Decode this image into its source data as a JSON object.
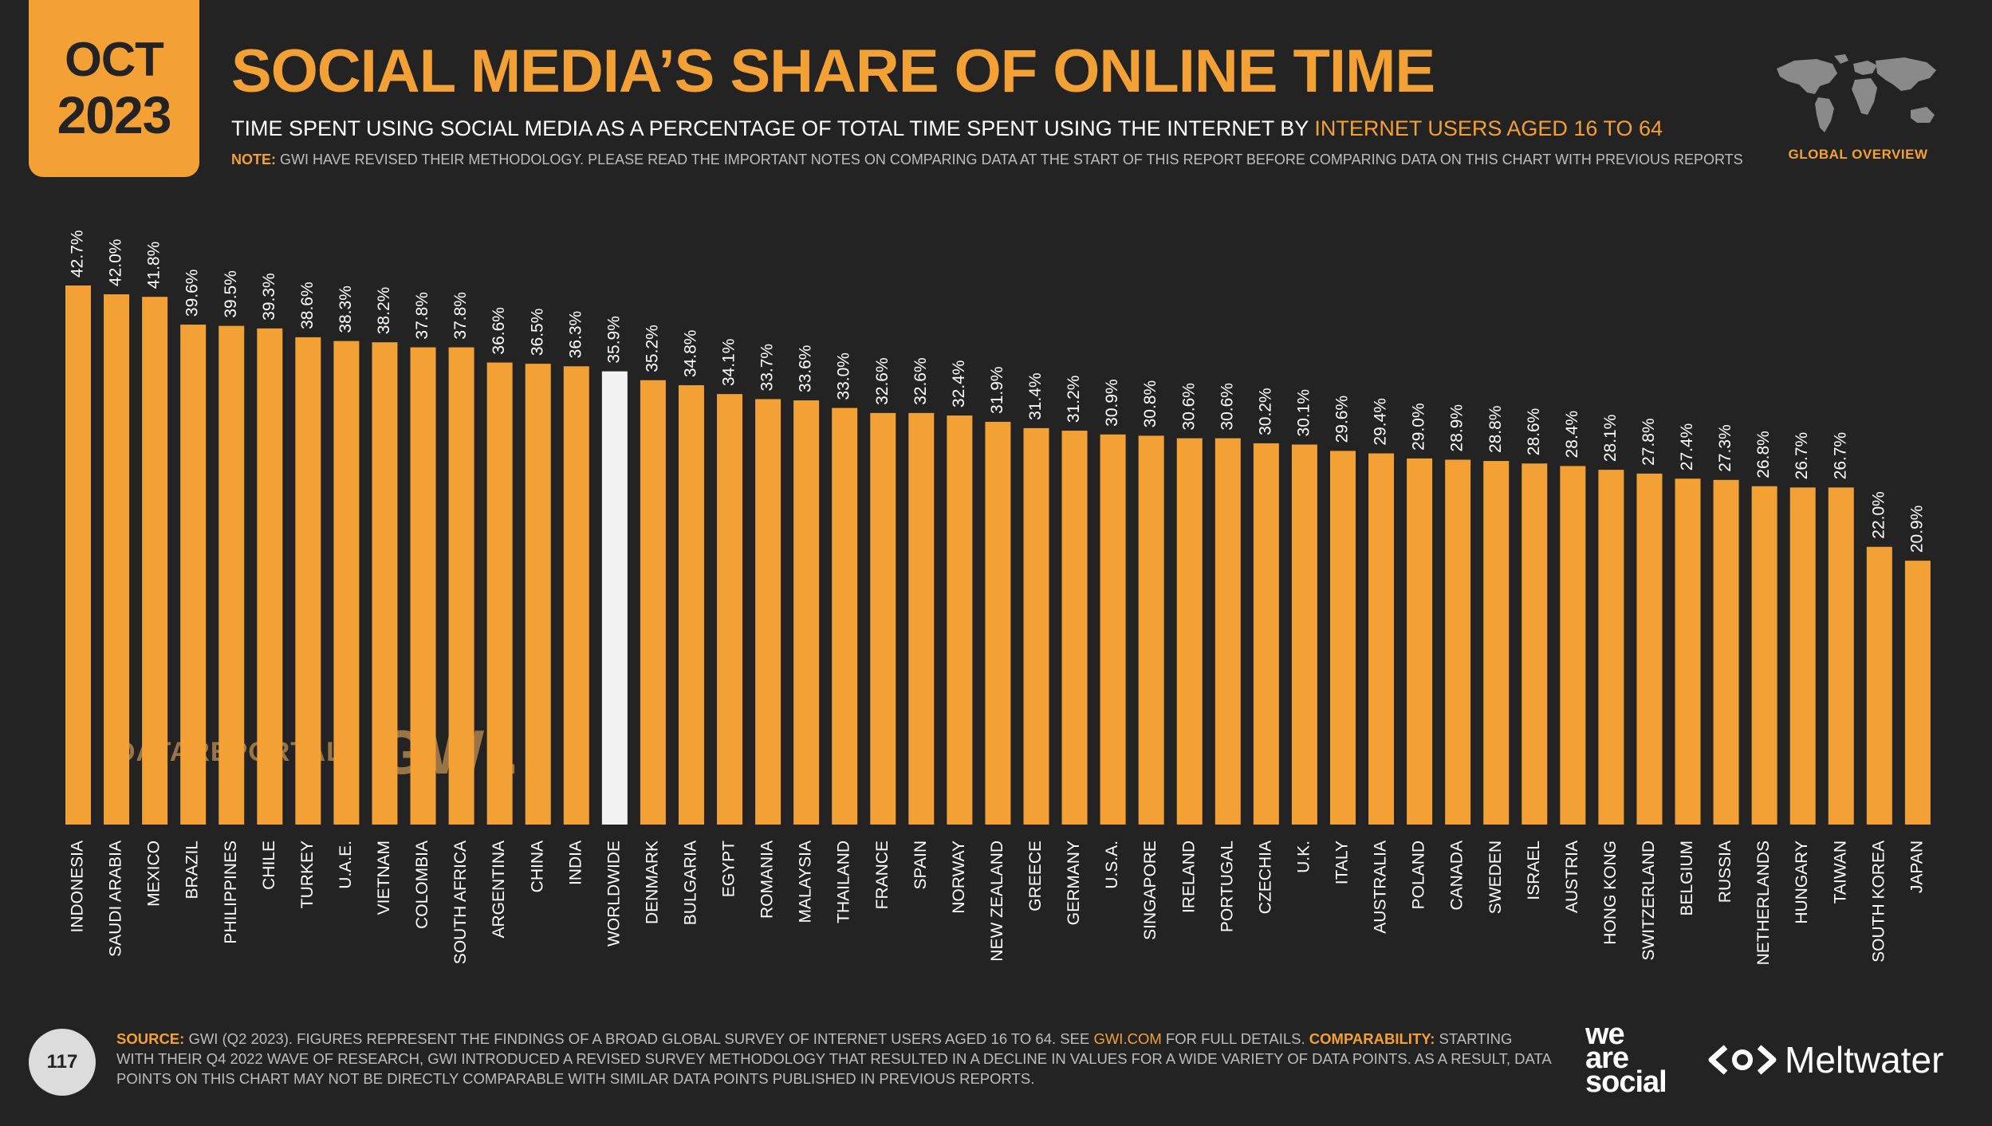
{
  "header": {
    "month": "OCT",
    "year": "2023",
    "title": "SOCIAL MEDIA’S SHARE OF ONLINE TIME",
    "subtitle_main": "TIME SPENT USING SOCIAL MEDIA AS A PERCENTAGE OF TOTAL TIME SPENT USING THE INTERNET BY ",
    "subtitle_highlight": "INTERNET USERS AGED 16 TO 64",
    "note_label": "NOTE:",
    "note_text": " GWI HAVE REVISED THEIR METHODOLOGY. PLEASE READ THE IMPORTANT NOTES ON COMPARING DATA AT THE START OF THIS REPORT BEFORE COMPARING DATA ON THIS CHART WITH PREVIOUS REPORTS",
    "overview_label": "GLOBAL OVERVIEW",
    "map_icon": "world-map-icon"
  },
  "colors": {
    "background": "#232323",
    "accent": "#f3a035",
    "highlight_bar": "#f2f2f2"
  },
  "chart_data": {
    "type": "bar",
    "categories": [
      "INDONESIA",
      "SAUDI ARABIA",
      "MEXICO",
      "BRAZIL",
      "PHILIPPINES",
      "CHILE",
      "TURKEY",
      "U.A.E.",
      "VIETNAM",
      "COLOMBIA",
      "SOUTH AFRICA",
      "ARGENTINA",
      "CHINA",
      "INDIA",
      "WORLDWIDE",
      "DENMARK",
      "BULGARIA",
      "EGYPT",
      "ROMANIA",
      "MALAYSIA",
      "THAILAND",
      "FRANCE",
      "SPAIN",
      "NORWAY",
      "NEW ZEALAND",
      "GREECE",
      "GERMANY",
      "U.S.A.",
      "SINGAPORE",
      "IRELAND",
      "PORTUGAL",
      "CZECHIA",
      "U.K.",
      "ITALY",
      "AUSTRALIA",
      "POLAND",
      "CANADA",
      "SWEDEN",
      "ISRAEL",
      "AUSTRIA",
      "HONG KONG",
      "SWITZERLAND",
      "BELGIUM",
      "RUSSIA",
      "NETHERLANDS",
      "HUNGARY",
      "TAIWAN",
      "SOUTH KOREA",
      "JAPAN"
    ],
    "values": [
      42.7,
      42.0,
      41.8,
      39.6,
      39.5,
      39.3,
      38.6,
      38.3,
      38.2,
      37.8,
      37.8,
      36.6,
      36.5,
      36.3,
      35.9,
      35.2,
      34.8,
      34.1,
      33.7,
      33.6,
      33.0,
      32.6,
      32.6,
      32.4,
      31.9,
      31.4,
      31.2,
      30.9,
      30.8,
      30.6,
      30.6,
      30.2,
      30.1,
      29.6,
      29.4,
      29.0,
      28.9,
      28.8,
      28.6,
      28.4,
      28.1,
      27.8,
      27.4,
      27.3,
      26.8,
      26.7,
      26.7,
      22.0,
      20.9
    ],
    "labels": [
      "42.7%",
      "42.0%",
      "41.8%",
      "39.6%",
      "39.5%",
      "39.3%",
      "38.6%",
      "38.3%",
      "38.2%",
      "37.8%",
      "37.8%",
      "36.6%",
      "36.5%",
      "36.3%",
      "35.9%",
      "35.2%",
      "34.8%",
      "34.1%",
      "33.7%",
      "33.6%",
      "33.0%",
      "32.6%",
      "32.6%",
      "32.4%",
      "31.9%",
      "31.4%",
      "31.2%",
      "30.9%",
      "30.8%",
      "30.6%",
      "30.6%",
      "30.2%",
      "30.1%",
      "29.6%",
      "29.4%",
      "29.0%",
      "28.9%",
      "28.8%",
      "28.6%",
      "28.4%",
      "28.1%",
      "27.8%",
      "27.4%",
      "27.3%",
      "26.8%",
      "26.7%",
      "26.7%",
      "22.0%",
      "20.9%"
    ],
    "highlight_category": "WORLDWIDE",
    "ylim": [
      0,
      42.7
    ],
    "grid": false
  },
  "watermark": {
    "datareportal": "DATAREPORTAL",
    "gwi": "GWI."
  },
  "footer": {
    "page_number": "117",
    "source_label": "SOURCE:",
    "source_text_1": " GWI (Q2 2023). FIGURES REPRESENT THE FINDINGS OF A BROAD GLOBAL SURVEY OF INTERNET USERS AGED 16 TO 64. SEE ",
    "source_link": "GWI.COM",
    "source_text_2": " FOR FULL DETAILS. ",
    "comparability_label": "COMPARABILITY:",
    "comparability_text": " STARTING WITH THEIR Q4 2022 WAVE OF RESEARCH, GWI INTRODUCED A REVISED SURVEY METHODOLOGY THAT RESULTED IN A DECLINE IN VALUES FOR A WIDE VARIETY OF DATA POINTS. AS A RESULT, DATA POINTS ON THIS CHART MAY NOT BE DIRECTLY COMPARABLE WITH SIMILAR DATA POINTS PUBLISHED IN PREVIOUS REPORTS.",
    "logo_we": "we",
    "logo_are": "are",
    "logo_social": "social",
    "logo_meltwater": "Meltwater"
  }
}
